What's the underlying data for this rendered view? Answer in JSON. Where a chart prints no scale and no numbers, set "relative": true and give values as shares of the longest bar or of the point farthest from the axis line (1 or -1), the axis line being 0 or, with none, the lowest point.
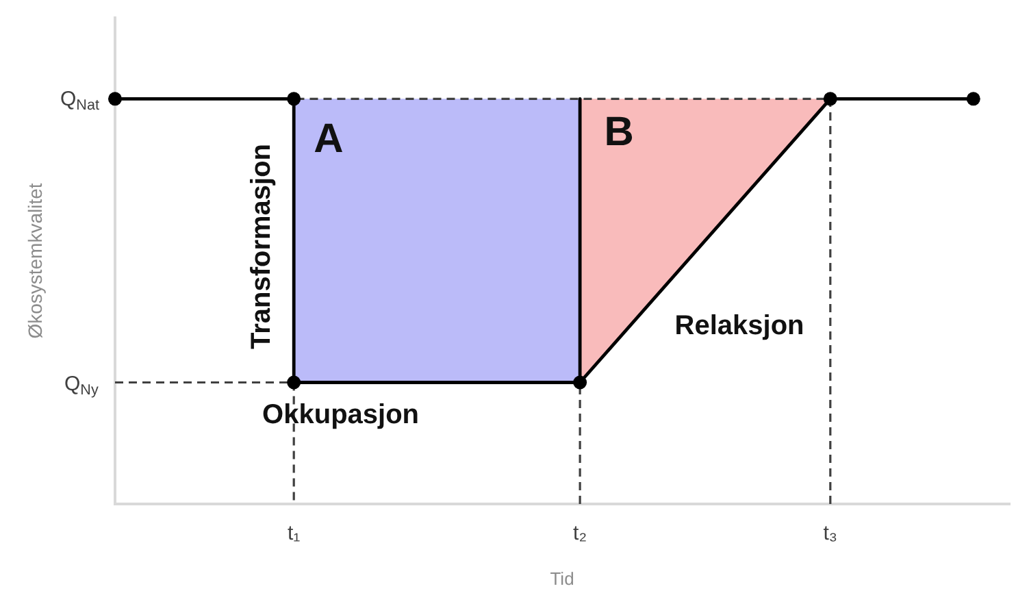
{
  "chart_data": {
    "type": "line",
    "relative": true,
    "xlabel": "Tid",
    "ylabel": "Økosystemkvalitet",
    "categories": [
      null,
      null,
      null,
      null,
      null,
      "t₁",
      null,
      null,
      null,
      null,
      null,
      null,
      null,
      "t₂",
      null,
      null,
      null,
      null,
      null,
      null,
      "t₃",
      null,
      null,
      null,
      null,
      null
    ],
    "series": [
      {
        "values": [
          1,
          1,
          1,
          1,
          1,
          1,
          null,
          null,
          null,
          null,
          null,
          null,
          null,
          null,
          null,
          null,
          null,
          null,
          null,
          null,
          null,
          null,
          null,
          null,
          null,
          null
        ],
        "color": "#000000",
        "line_style": "solid"
      },
      {
        "x": [
          "t₁",
          "t₁",
          "t₂",
          "t₃"
        ],
        "values": [
          1,
          0.3,
          0.3,
          1
        ],
        "color": "#000000",
        "marker": "circle",
        "line_style": "solid"
      },
      {
        "values": [
          null,
          null,
          null,
          null,
          null,
          null,
          null,
          null,
          null,
          null,
          null,
          null,
          null,
          null,
          null,
          null,
          null,
          null,
          null,
          null,
          1,
          1,
          1,
          1,
          1,
          null
        ],
        "color": "#000000",
        "line_style": "solid"
      },
      {
        "type": "scatter",
        "values": [
          1,
          null,
          null,
          null,
          null,
          null,
          null,
          null,
          null,
          null,
          null,
          null,
          null,
          null,
          null,
          null,
          null,
          null,
          null,
          null,
          null,
          null,
          null,
          null,
          1,
          null
        ],
        "color": "#000000",
        "marker": "circle"
      },
      {
        "values": [
          0.3,
          0.3,
          0.3,
          0.3,
          0.3,
          0.3,
          null,
          null,
          null,
          null,
          null,
          null,
          null,
          null,
          null,
          null,
          null,
          null,
          null,
          null,
          null,
          null,
          null,
          null,
          null,
          null
        ],
        "color": "#404040",
        "line_style": "dashed"
      },
      {
        "x": [
          "t₁",
          "t₁"
        ],
        "values": [
          0.3,
          0
        ],
        "color": "#404040",
        "line_style": "dashed"
      },
      {
        "x": [
          "t₂",
          "t₂"
        ],
        "values": [
          0,
          0.3
        ],
        "color": "#404040",
        "line_style": "dashed"
      },
      {
        "x": [
          "t₃",
          "t₃",
          "t₁"
        ],
        "values": [
          0,
          1,
          1
        ],
        "color": "#404040",
        "line_style": "dashed"
      },
      {
        "x": [
          "t₂",
          "t₂"
        ],
        "values": [
          0.3,
          1
        ],
        "color": "#000000",
        "line_style": "solid"
      },
      {
        "type": "area",
        "x": [
          "t₁",
          "t₂",
          "t₂",
          "t₁"
        ],
        "values": [
          1,
          1,
          0.3,
          0.3
        ],
        "color": "#bbbbf9"
      },
      {
        "type": "area",
        "x": [
          "t₂",
          "t₃",
          "t₂"
        ],
        "values": [
          1,
          1,
          0.3
        ],
        "color": "#f9bbbb"
      }
    ],
    "annotations": [
      "A",
      "B",
      "Transformasjon",
      "Okkupasjon",
      "Relaksjon",
      "Q$_{Nat}$",
      "Q$_{Ny}$"
    ]
  }
}
